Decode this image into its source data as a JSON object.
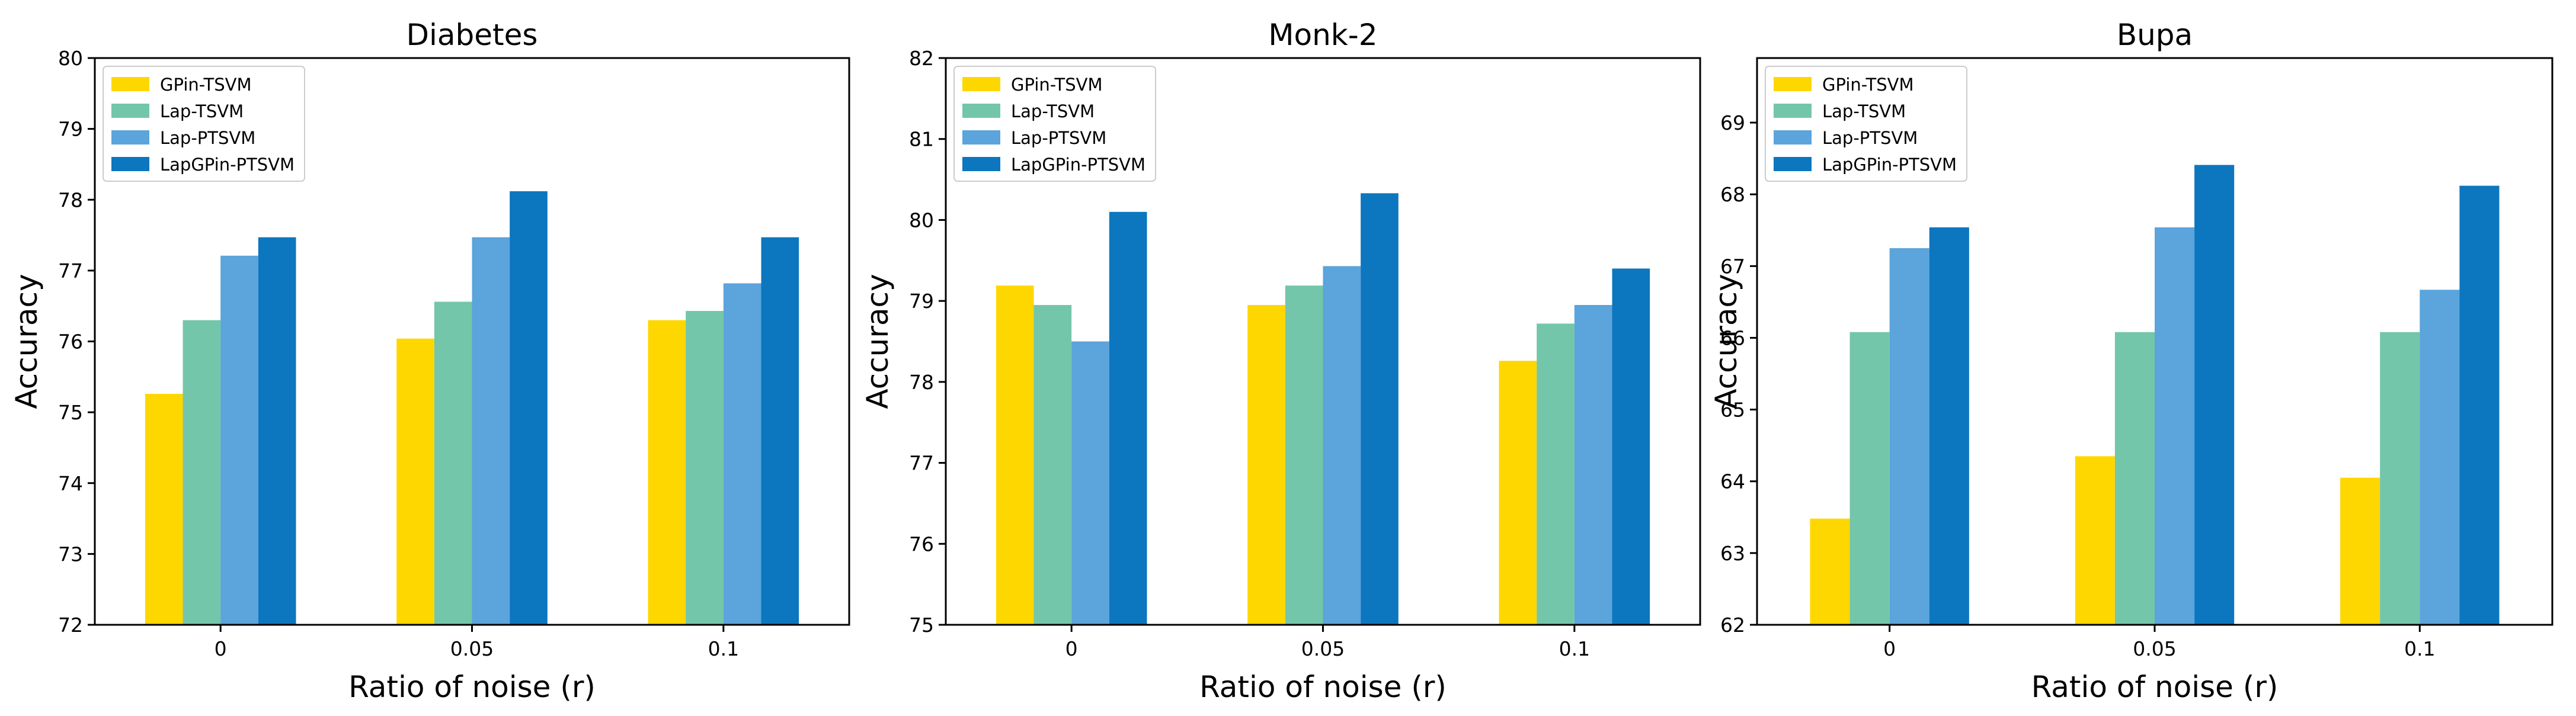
{
  "figure": {
    "series_colors": [
      "#FFD700",
      "#73C6A9",
      "#5BA4DC",
      "#0C76BF"
    ],
    "frame_color": "#000000"
  },
  "chart_data": [
    {
      "type": "bar",
      "title": "Diabetes",
      "xlabel": "Ratio of noise (r)",
      "ylabel": "Accuracy",
      "categories": [
        "0",
        "0.05",
        "0.1"
      ],
      "ylim": [
        72,
        80
      ],
      "yticks": [
        72,
        73,
        74,
        75,
        76,
        77,
        78,
        79,
        80
      ],
      "legend_position": "upper-left",
      "series": [
        {
          "name": "GPin-TSVM",
          "values": [
            75.26,
            76.04,
            76.3
          ]
        },
        {
          "name": "Lap-TSVM",
          "values": [
            76.3,
            76.56,
            76.43
          ]
        },
        {
          "name": "Lap-PTSVM",
          "values": [
            77.21,
            77.47,
            76.82
          ]
        },
        {
          "name": "LapGPin-PTSVM",
          "values": [
            77.47,
            78.12,
            77.47
          ]
        }
      ]
    },
    {
      "type": "bar",
      "title": "Monk-2",
      "xlabel": "Ratio of noise (r)",
      "ylabel": "Accuracy",
      "categories": [
        "0",
        "0.05",
        "0.1"
      ],
      "ylim": [
        75,
        82
      ],
      "yticks": [
        75,
        76,
        77,
        78,
        79,
        80,
        81,
        82
      ],
      "legend_position": "upper-left",
      "series": [
        {
          "name": "GPin-TSVM",
          "values": [
            79.19,
            78.95,
            78.26
          ]
        },
        {
          "name": "Lap-TSVM",
          "values": [
            78.95,
            79.19,
            78.72
          ]
        },
        {
          "name": "Lap-PTSVM",
          "values": [
            78.5,
            79.43,
            78.95
          ]
        },
        {
          "name": "LapGPin-PTSVM",
          "values": [
            80.1,
            80.33,
            79.4
          ]
        }
      ]
    },
    {
      "type": "bar",
      "title": "Bupa",
      "xlabel": "Ratio of noise (r)",
      "ylabel": "Accuracy",
      "categories": [
        "0",
        "0.05",
        "0.1"
      ],
      "ylim": [
        62,
        69.9
      ],
      "yticks": [
        62,
        63,
        64,
        65,
        66,
        67,
        68,
        69
      ],
      "legend_position": "upper-left",
      "series": [
        {
          "name": "GPin-TSVM",
          "values": [
            63.48,
            64.35,
            64.05
          ]
        },
        {
          "name": "Lap-TSVM",
          "values": [
            66.08,
            66.08,
            66.08
          ]
        },
        {
          "name": "Lap-PTSVM",
          "values": [
            67.25,
            67.54,
            66.67
          ]
        },
        {
          "name": "LapGPin-PTSVM",
          "values": [
            67.54,
            68.41,
            68.12
          ]
        }
      ]
    }
  ]
}
